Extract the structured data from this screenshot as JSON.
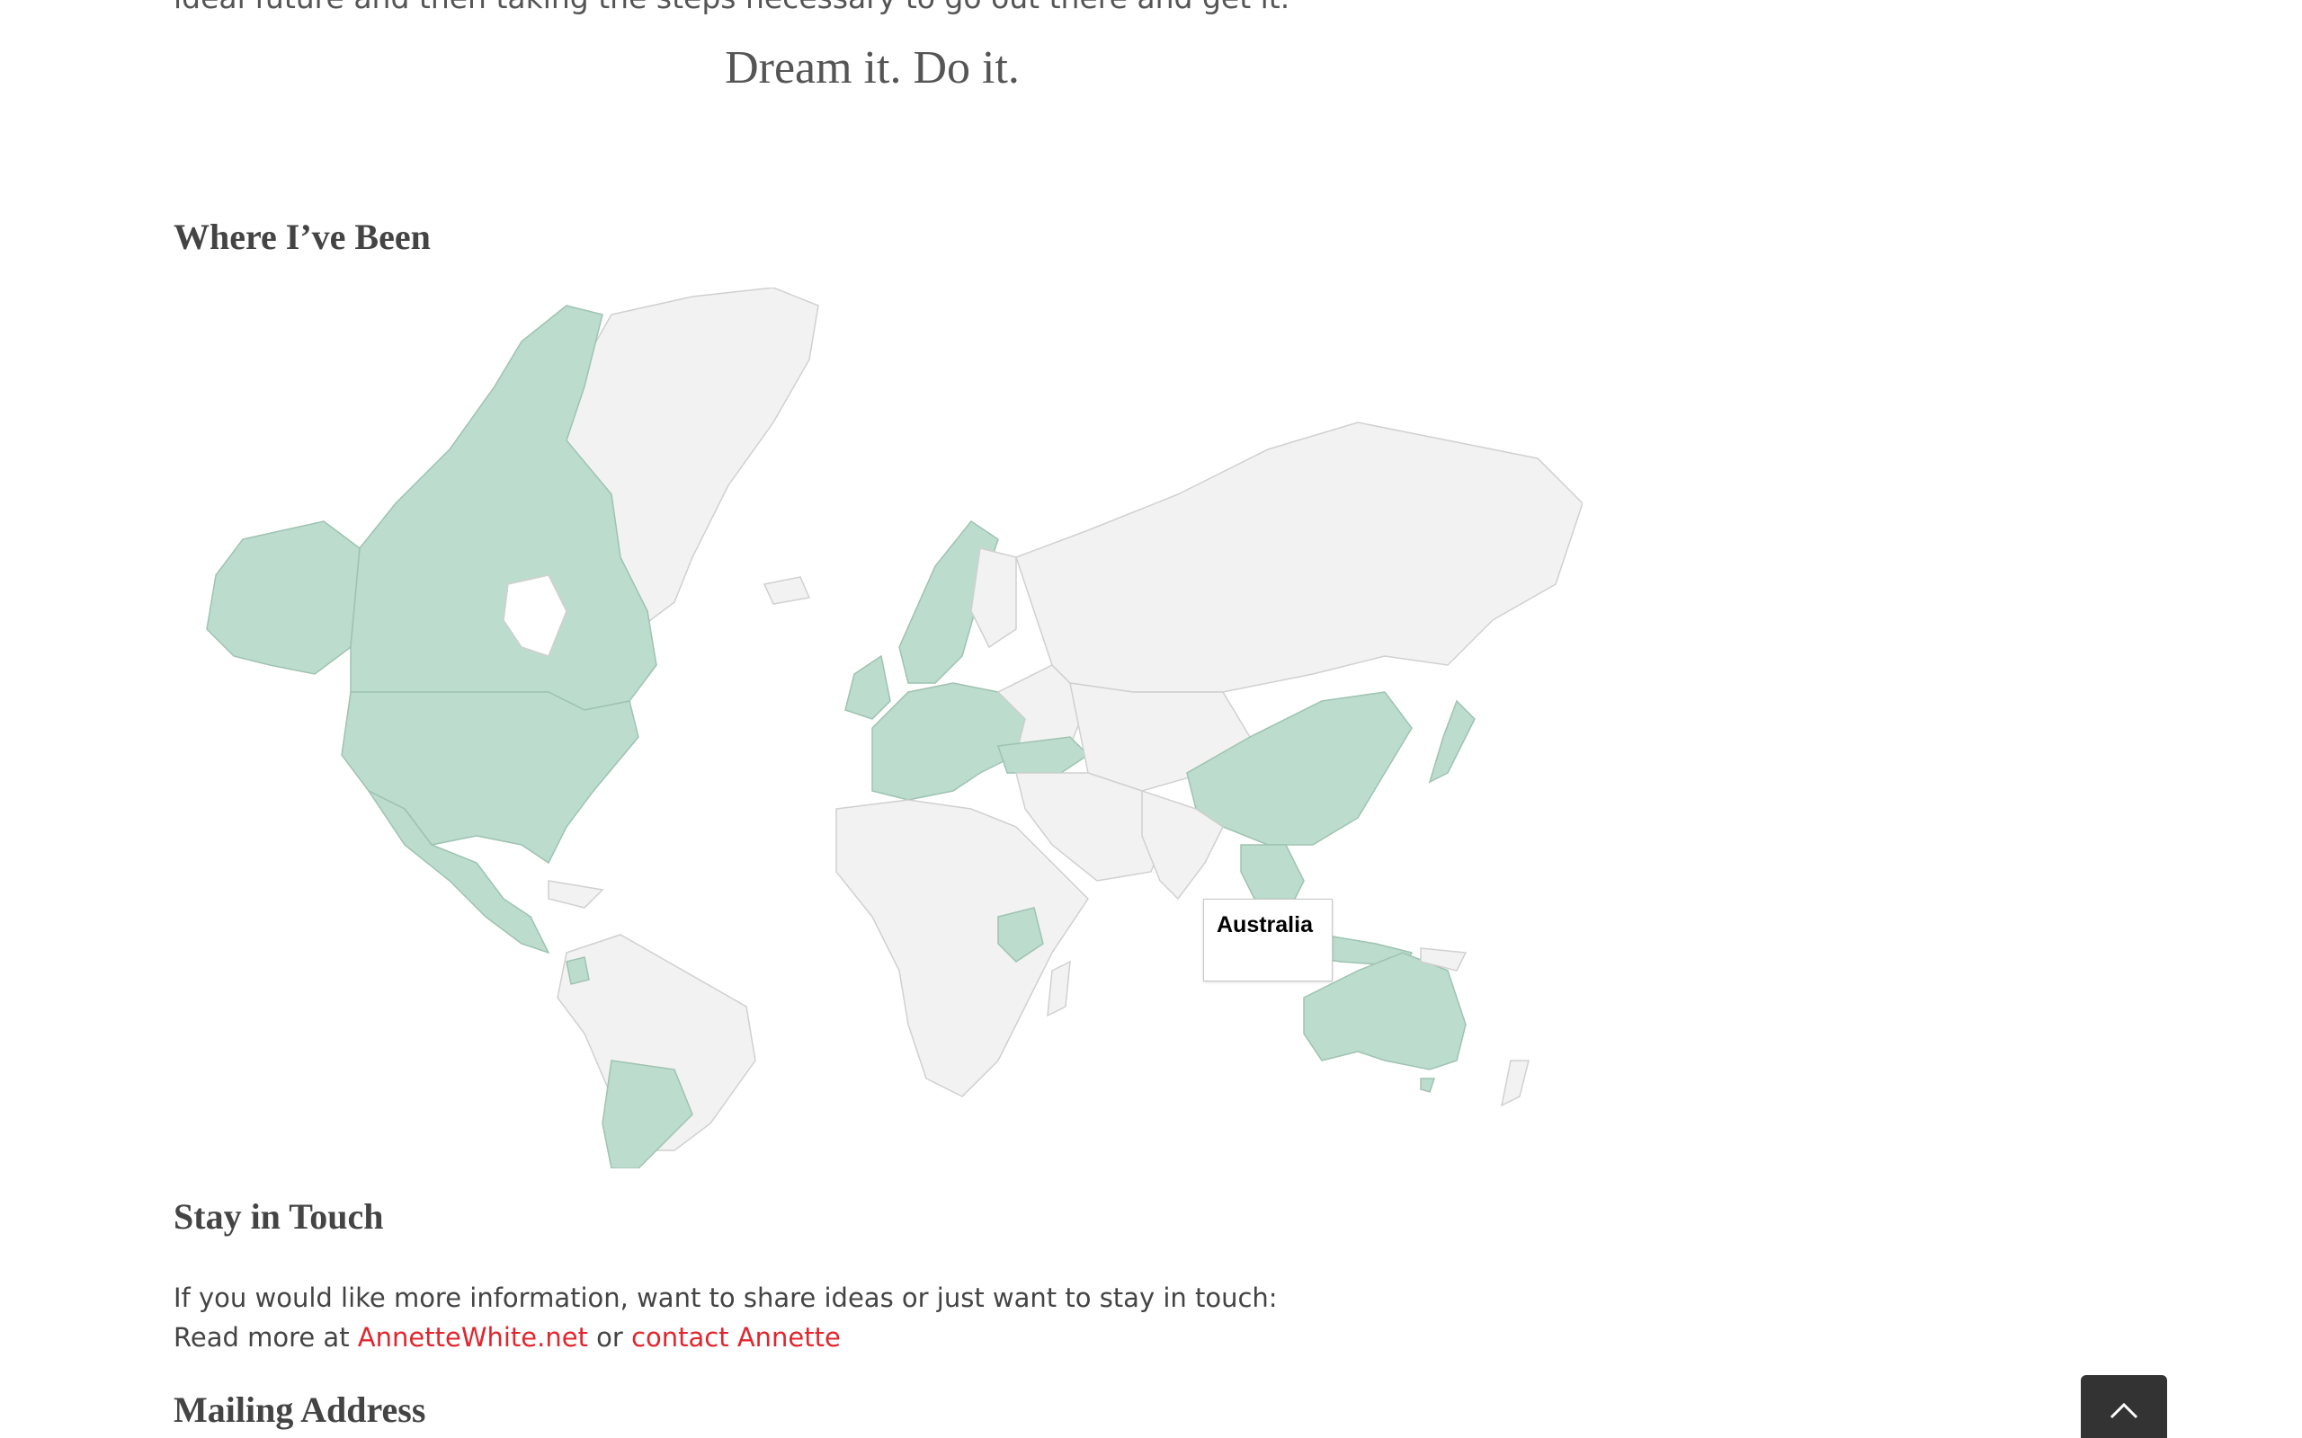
{
  "intro": {
    "text": "ideal future and then taking the steps necessary to go out there and get it."
  },
  "tagline": "Dream it. Do it.",
  "where_section": {
    "heading": "Where I’ve Been",
    "tooltip_label": "Australia",
    "visited_color": "#bcdccd",
    "unvisited_color": "#f2f2f2",
    "visited_regions": [
      "Canada",
      "United States",
      "Mexico",
      "Central America",
      "Argentina",
      "Chile",
      "Ecuador",
      "Norway",
      "Sweden",
      "United Kingdom",
      "Ireland",
      "France",
      "Spain",
      "Germany",
      "Italy",
      "Greece",
      "Turkey",
      "Tanzania",
      "China",
      "Japan",
      "Thailand",
      "Vietnam",
      "Indonesia",
      "Australia"
    ]
  },
  "stay_section": {
    "heading": "Stay in Touch",
    "line1": "If you would like more information, want to share ideas or just want to stay in touch:",
    "line2_prefix": "Read more at ",
    "link1": "AnnetteWhite.net",
    "line2_middle": " or ",
    "link2": "contact Annette"
  },
  "mailing_section": {
    "heading": "Mailing Address"
  },
  "back_to_top": {
    "icon": "chevron-up-icon"
  }
}
